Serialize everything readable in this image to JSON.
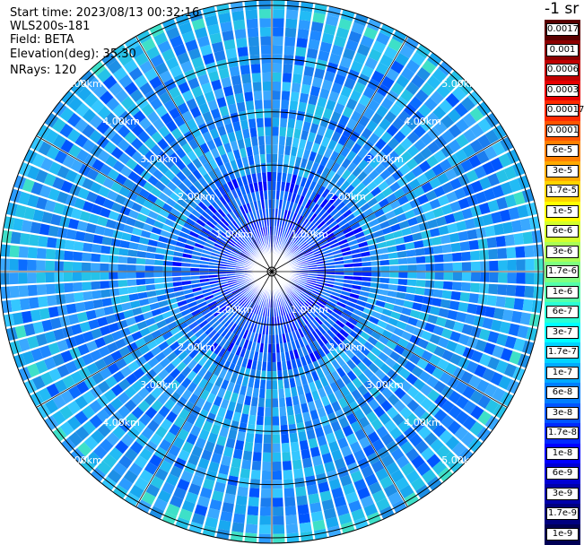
{
  "info": {
    "start_time": "Start time: 2023/08/13 00:32:16",
    "instrument": "WLS200s-181",
    "field": "Field: BETA",
    "elevation": "Elevation(deg): 35.30",
    "nrays": "NRays: 120"
  },
  "colorbar": {
    "units": "-1 sr",
    "labels": [
      "0.0017",
      "0.001",
      "0.0006",
      "0.0003",
      "0.00017",
      "0.0001",
      "6e-5",
      "3e-5",
      "1.7e-5",
      "1e-5",
      "6e-6",
      "3e-6",
      "1.7e-6",
      "1e-6",
      "6e-7",
      "3e-7",
      "1.7e-7",
      "1e-7",
      "6e-8",
      "3e-8",
      "1.7e-8",
      "1e-8",
      "6e-9",
      "3e-9",
      "1.7e-9",
      "1e-9"
    ],
    "colors": [
      "#5a0000",
      "#8b0000",
      "#c00000",
      "#e60000",
      "#ff2a00",
      "#ff5500",
      "#ff7f00",
      "#ffaa00",
      "#ffd400",
      "#ffff00",
      "#d4ff2b",
      "#aaff55",
      "#7fff7f",
      "#55ffaa",
      "#2bffd4",
      "#00ffff",
      "#00d4ff",
      "#00aaff",
      "#007fff",
      "#0055ff",
      "#002aff",
      "#0000ff",
      "#0000d4",
      "#0000aa",
      "#00007f",
      "#000055"
    ]
  },
  "chart_data": {
    "type": "heatmap",
    "title": "",
    "plot": "PPI polar scan",
    "range_rings_km": [
      1,
      2,
      3,
      4,
      5
    ],
    "range_labels": [
      "1.00km",
      "2.00km",
      "3.00km",
      "4.00km",
      "5.00km"
    ],
    "max_range_km": 5.1,
    "n_rays": 120,
    "spoke_angles_deg": [
      0,
      30,
      60,
      90,
      120,
      150,
      180,
      210,
      240,
      270,
      300,
      330
    ],
    "label_angles_deg": [
      45,
      135,
      225,
      315
    ],
    "background_level": "1e-8 to 6e-8",
    "outer_band_level": "1e-7 to 3e-7",
    "center_level": "1e-9"
  }
}
